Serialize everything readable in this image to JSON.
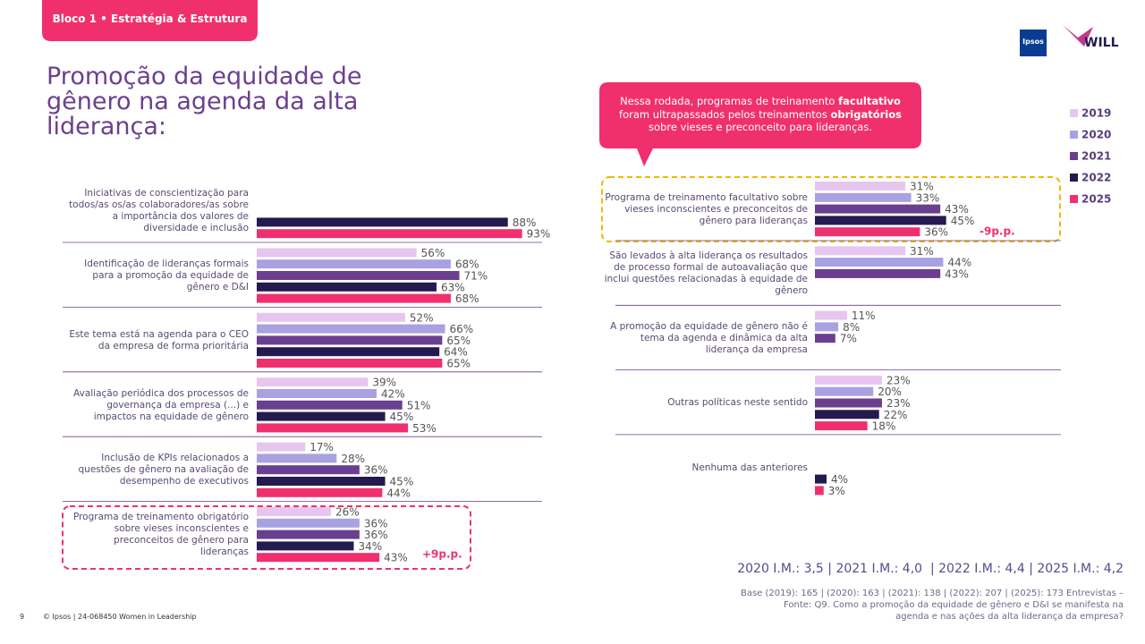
{
  "header": {
    "tab": "Bloco 1 • Estratégia & Estrutura",
    "title": "Promoção da equidade de gênero na agenda da alta liderança:",
    "logos": [
      "Ipsos",
      "WILL"
    ]
  },
  "callout": [
    [
      {
        "text": "Nessa rodada, programas de treinamento ",
        "bold": false
      },
      {
        "text": "facultativo",
        "bold": true
      }
    ],
    [
      {
        "text": "foram ultrapassados pelos treinamentos ",
        "bold": false
      },
      {
        "text": "obrigatórios",
        "bold": true
      }
    ],
    [
      {
        "text": "sobre vieses e preconceito para lideranças.",
        "bold": false
      }
    ]
  ],
  "footer": {
    "index": "2020 I.M.: 3,5 | 2021 I.M.: 4,0  | 2022 I.M.: 4,4 | 2025 I.M.: 4,2",
    "base": [
      "Base (2019): 165 | (2020): 163 | (2021): 138 | (2022): 207 | (2025): 173 Entrevistas –",
      "Fonte: Q9. Como a promoção da equidade de gênero e D&I se manifesta na",
      "agenda e nas ações da alta liderança da empresa?"
    ],
    "page": "9",
    "copyright": "© Ipsos | 24-068450 Women in Leadership"
  },
  "chart_data": [
    {
      "type": "hbar",
      "xlim": [
        0,
        100
      ],
      "categories": [
        "Iniciativas de conscientização para todos/as os/as colaboradores/as sobre a importância dos valores de diversidade e inclusão",
        "Identificação de lideranças formais para a promoção da equidade de gênero e D&I",
        "Este tema está na agenda para o CEO da empresa de forma prioritária",
        "Avaliação periódica dos processos de governança da empresa (...) e impactos na equidade de gênero",
        "Inclusão de KPIs relacionados a questões de gênero na avaliação de desempenho de executivos",
        "Programa de treinamento obrigatório sobre vieses inconscientes e preconceitos de gênero para lideranças"
      ],
      "series": [
        {
          "name": "2019",
          "color": "#e6c6ee",
          "values": [
            null,
            56,
            52,
            39,
            17,
            26
          ],
          "value_labels": [
            null,
            "56%",
            "52%",
            "39%",
            "17%",
            "26%"
          ]
        },
        {
          "name": "2020",
          "color": "#a9a2e0",
          "values": [
            null,
            68,
            66,
            42,
            28,
            36
          ],
          "value_labels": [
            null,
            "68%",
            "66%",
            "42%",
            "28%",
            "36%"
          ]
        },
        {
          "name": "2021",
          "color": "#6b3f8f",
          "values": [
            null,
            71,
            65,
            51,
            36,
            36
          ],
          "value_labels": [
            null,
            "71%",
            "65%",
            "51%",
            "36%",
            "36%"
          ]
        },
        {
          "name": "2022",
          "color": "#241a4f",
          "values": [
            88,
            63,
            64,
            45,
            45,
            34
          ],
          "value_labels": [
            "88%",
            "63%",
            "64%",
            "45%",
            "45%",
            "34%"
          ]
        },
        {
          "name": "2025",
          "color": "#f0306e",
          "values": [
            93,
            68,
            65,
            53,
            44,
            43
          ],
          "value_labels": [
            "93%",
            "68%",
            "65%",
            "53%",
            "44%",
            "43%"
          ]
        }
      ],
      "annotations": [
        {
          "text": "+9p.p.",
          "color": "#f0306e"
        }
      ]
    },
    {
      "type": "hbar",
      "xlim": [
        0,
        100
      ],
      "legend": "upper right",
      "categories": [
        "Programa de treinamento facultativo sobre vieses inconscientes e preconceitos de gênero para lideranças",
        "São levados à alta liderança os resultados de processo formal de autoavaliação que inclui questões relacionadas à equidade de gênero",
        "A promoção da equidade de gênero não é tema da agenda e dinâmica da alta liderança da empresa",
        "Outras políticas neste sentido",
        "Nenhuma das anteriores"
      ],
      "series": [
        {
          "name": "2019",
          "color": "#e6c6ee",
          "values": [
            31,
            31,
            11,
            23,
            null
          ],
          "value_labels": [
            "31%",
            "31%",
            "11%",
            "23%",
            null
          ]
        },
        {
          "name": "2020",
          "color": "#a9a2e0",
          "values": [
            33,
            44,
            8,
            20,
            null
          ],
          "value_labels": [
            "33%",
            "44%",
            "8%",
            "20%",
            null
          ]
        },
        {
          "name": "2021",
          "color": "#6b3f8f",
          "values": [
            43,
            43,
            7,
            23,
            null
          ],
          "value_labels": [
            "43%",
            "43%",
            "7%",
            "23%",
            null
          ]
        },
        {
          "name": "2022",
          "color": "#241a4f",
          "values": [
            45,
            null,
            null,
            22,
            4
          ],
          "value_labels": [
            "45%",
            null,
            null,
            "22%",
            "4%"
          ]
        },
        {
          "name": "2025",
          "color": "#f0306e",
          "values": [
            36,
            null,
            null,
            18,
            3
          ],
          "value_labels": [
            "36%",
            null,
            null,
            "18%",
            "3%"
          ]
        }
      ],
      "annotations": [
        {
          "text": "-9p.p.",
          "color": "#f0306e"
        }
      ]
    }
  ]
}
